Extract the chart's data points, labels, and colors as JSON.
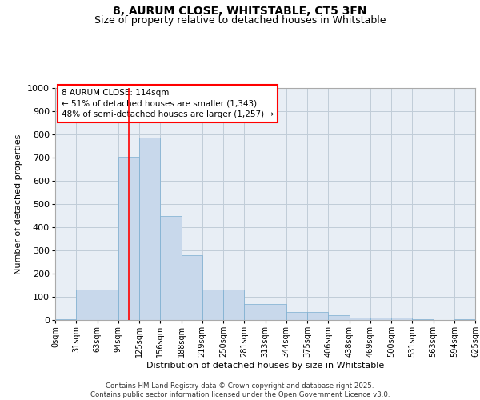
{
  "title_line1": "8, AURUM CLOSE, WHITSTABLE, CT5 3FN",
  "title_line2": "Size of property relative to detached houses in Whitstable",
  "xlabel": "Distribution of detached houses by size in Whitstable",
  "ylabel": "Number of detached properties",
  "bar_values": [
    5,
    130,
    130,
    705,
    785,
    450,
    280,
    130,
    130,
    70,
    70,
    35,
    35,
    22,
    10,
    10,
    10,
    5,
    0,
    5
  ],
  "bin_labels": [
    "0sqm",
    "31sqm",
    "63sqm",
    "94sqm",
    "125sqm",
    "156sqm",
    "188sqm",
    "219sqm",
    "250sqm",
    "281sqm",
    "313sqm",
    "344sqm",
    "375sqm",
    "406sqm",
    "438sqm",
    "469sqm",
    "500sqm",
    "531sqm",
    "563sqm",
    "594sqm",
    "625sqm"
  ],
  "bar_color": "#c8d8eb",
  "bar_edge_color": "#7aaed0",
  "vline_x": 3.5,
  "vline_color": "red",
  "annotation_text": "8 AURUM CLOSE: 114sqm\n← 51% of detached houses are smaller (1,343)\n48% of semi-detached houses are larger (1,257) →",
  "annotation_fontsize": 7.5,
  "ylim": [
    0,
    1000
  ],
  "yticks": [
    0,
    100,
    200,
    300,
    400,
    500,
    600,
    700,
    800,
    900,
    1000
  ],
  "grid_color": "#c0ccd8",
  "bg_color": "#e8eef5",
  "footer_text": "Contains HM Land Registry data © Crown copyright and database right 2025.\nContains public sector information licensed under the Open Government Licence v3.0.",
  "title_fontsize": 10,
  "subtitle_fontsize": 9,
  "xlabel_fontsize": 8,
  "ylabel_fontsize": 8,
  "tick_fontsize": 7,
  "ytick_fontsize": 8
}
